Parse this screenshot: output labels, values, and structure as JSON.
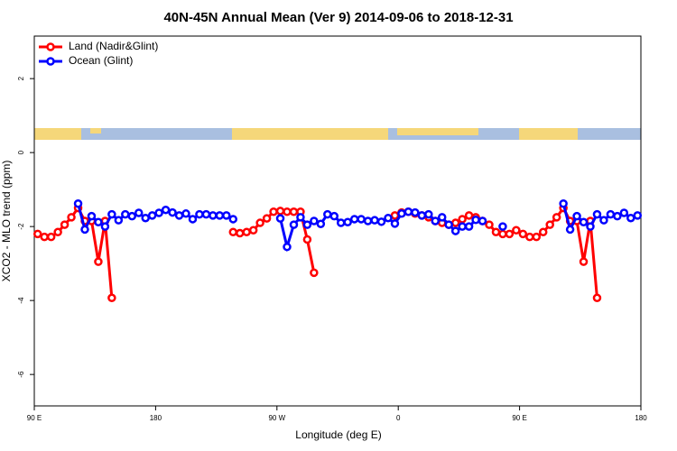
{
  "chart_data": {
    "type": "line",
    "title": "40N-45N Annual Mean (Ver 9)   2014-09-06 to 2018-12-31",
    "x_label": "Longitude (deg E)",
    "y_label": "XCO2 - MLO trend (ppm)",
    "xlim": [
      90,
      540
    ],
    "ylim": [
      -6.85,
      3.15
    ],
    "xticks": [
      {
        "value": 90,
        "label": "90 E"
      },
      180,
      {
        "value": 270,
        "label": "90 W"
      },
      {
        "value": 360,
        "label": "0"
      },
      {
        "value": 450,
        "label": "90 E"
      },
      {
        "value": 540,
        "label": "180"
      }
    ],
    "yticks": [
      2,
      0,
      -2,
      -4,
      -6
    ],
    "legend": "top-left",
    "x": [
      92.5,
      97.5,
      102.5,
      107.5,
      112.5,
      117.5,
      122.5,
      127.5,
      132.5,
      137.5,
      142.5,
      147.5,
      152.5,
      157.5,
      162.5,
      167.5,
      172.5,
      177.5,
      182.5,
      187.5,
      192.5,
      197.5,
      202.5,
      207.5,
      212.5,
      217.5,
      222.5,
      227.5,
      232.5,
      237.5,
      242.5,
      247.5,
      252.5,
      257.5,
      262.5,
      267.5,
      272.5,
      277.5,
      282.5,
      287.5,
      292.5,
      297.5,
      302.5,
      307.5,
      312.5,
      317.5,
      322.5,
      327.5,
      332.5,
      337.5,
      342.5,
      347.5,
      352.5,
      357.5,
      362.5,
      367.5,
      372.5,
      377.5,
      382.5,
      387.5,
      392.5,
      397.5,
      402.5,
      407.5,
      412.5,
      417.5,
      422.5,
      427.5,
      432.5,
      437.5,
      442.5,
      447.5,
      452.5,
      457.5,
      462.5,
      467.5,
      472.5,
      477.5,
      482.5,
      487.5,
      492.5,
      497.5,
      502.5,
      507.5,
      512.5,
      517.5,
      522.5,
      527.5,
      532.5,
      537.5
    ],
    "series": [
      {
        "name": "Land (Nadir&Glint)",
        "color": "#ff0000",
        "values": [
          -2.2,
          -2.28,
          -2.28,
          -2.15,
          -1.95,
          -1.75,
          -1.5,
          -1.85,
          -1.85,
          -2.95,
          -1.85,
          -3.93,
          null,
          null,
          null,
          null,
          null,
          null,
          null,
          null,
          null,
          null,
          null,
          null,
          null,
          null,
          null,
          null,
          null,
          -2.15,
          -2.18,
          -2.15,
          -2.1,
          -1.9,
          -1.78,
          -1.6,
          -1.58,
          -1.6,
          -1.6,
          -1.6,
          -2.35,
          -3.25,
          null,
          null,
          null,
          null,
          null,
          null,
          null,
          null,
          null,
          null,
          null,
          -1.7,
          -1.62,
          -1.6,
          -1.65,
          -1.7,
          -1.75,
          -1.85,
          -1.9,
          -1.95,
          -1.9,
          -1.8,
          -1.7,
          -1.75,
          -1.85,
          -1.95,
          -2.15,
          -2.2,
          -2.2,
          -2.1,
          -2.2,
          -2.28,
          -2.28,
          -2.15,
          -1.95,
          -1.75,
          -1.5,
          -1.85,
          -1.85,
          -2.95,
          -1.85,
          -3.93,
          null,
          null,
          null,
          null,
          null,
          null
        ]
      },
      {
        "name": "Ocean (Glint)",
        "color": "#0000ff",
        "values": [
          null,
          null,
          null,
          null,
          null,
          null,
          -1.38,
          -2.08,
          -1.72,
          -1.88,
          -2.0,
          -1.67,
          -1.83,
          -1.67,
          -1.72,
          -1.63,
          -1.77,
          -1.7,
          -1.63,
          -1.55,
          -1.62,
          -1.7,
          -1.65,
          -1.8,
          -1.67,
          -1.67,
          -1.7,
          -1.7,
          -1.7,
          -1.8,
          null,
          null,
          null,
          null,
          null,
          null,
          -1.78,
          -2.55,
          -1.95,
          -1.75,
          -1.95,
          -1.85,
          -1.93,
          -1.67,
          -1.72,
          -1.9,
          -1.88,
          -1.8,
          -1.8,
          -1.85,
          -1.83,
          -1.87,
          -1.77,
          -1.92,
          -1.65,
          -1.6,
          -1.62,
          -1.7,
          -1.67,
          -1.85,
          -1.75,
          -1.95,
          -2.12,
          -2.0,
          -2.0,
          -1.82,
          -1.85,
          null,
          null,
          -2.0,
          null,
          null,
          null,
          null,
          null,
          null,
          null,
          null,
          -1.38,
          -2.08,
          -1.72,
          -1.88,
          -2.0,
          -1.67,
          -1.83,
          -1.67,
          -1.72,
          -1.63,
          -1.77,
          -1.7
        ]
      }
    ]
  }
}
